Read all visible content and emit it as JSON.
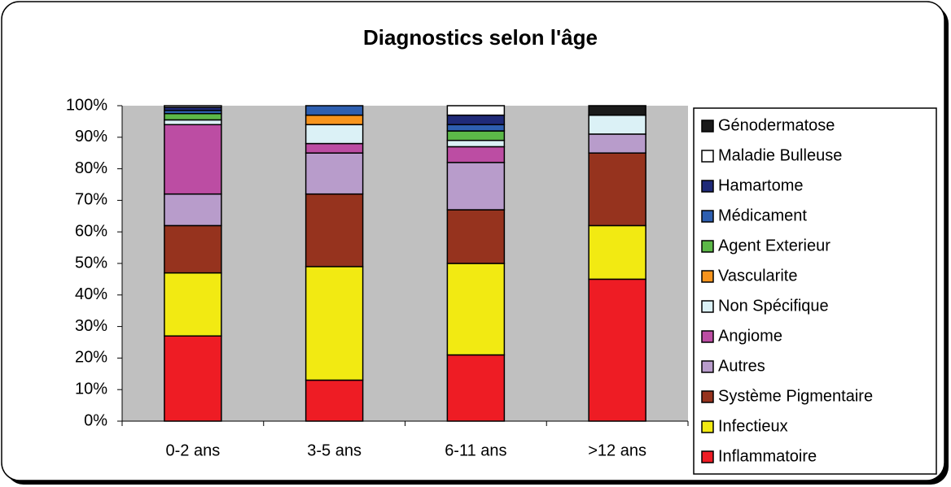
{
  "chart_data": {
    "type": "stacked_bar",
    "title": "Diagnostics selon l'âge",
    "categories": [
      "0-2 ans",
      "3-5 ans",
      "6-11 ans",
      ">12 ans"
    ],
    "series": [
      {
        "name": "Inflammatoire",
        "color": "#ee1c24",
        "values": [
          27,
          13,
          21,
          45
        ]
      },
      {
        "name": "Infectieux",
        "color": "#f2ea12",
        "values": [
          20,
          36,
          29,
          17
        ]
      },
      {
        "name": "Système Pigmentaire",
        "color": "#96331e",
        "values": [
          15,
          23,
          17,
          23
        ]
      },
      {
        "name": "Autres",
        "color": "#b89ccb",
        "values": [
          10,
          13,
          15,
          6
        ]
      },
      {
        "name": "Angiome",
        "color": "#bc4da3",
        "values": [
          22,
          3,
          5,
          0
        ]
      },
      {
        "name": "Non Spécifique",
        "color": "#dbf1f6",
        "values": [
          1.5,
          6,
          2,
          6
        ]
      },
      {
        "name": "Vascularite",
        "color": "#f7941d",
        "values": [
          0,
          3,
          0,
          0
        ]
      },
      {
        "name": "Agent Exterieur",
        "color": "#5cb848",
        "values": [
          2,
          0,
          3,
          0
        ]
      },
      {
        "name": "Médicament",
        "color": "#2e5fb0",
        "values": [
          1,
          3,
          2,
          0
        ]
      },
      {
        "name": "Hamartome",
        "color": "#1f2a78",
        "values": [
          1,
          0,
          3,
          0
        ]
      },
      {
        "name": "Maladie Bulleuse",
        "color": "#ffffff",
        "values": [
          0.5,
          0,
          3,
          0
        ]
      },
      {
        "name": "Génodermatose",
        "color": "#1a1a1a",
        "values": [
          0,
          0,
          0,
          3
        ]
      }
    ],
    "ylim": [
      0,
      100
    ],
    "yticks": [
      {
        "value": 0,
        "label": "0%"
      },
      {
        "value": 10,
        "label": "10%"
      },
      {
        "value": 20,
        "label": "20%"
      },
      {
        "value": 30,
        "label": "30%"
      },
      {
        "value": 40,
        "label": "40%"
      },
      {
        "value": 50,
        "label": "50%"
      },
      {
        "value": 60,
        "label": "60%"
      },
      {
        "value": 70,
        "label": "70%"
      },
      {
        "value": 80,
        "label": "80%"
      },
      {
        "value": 90,
        "label": "90%"
      },
      {
        "value": 100,
        "label": "100%"
      }
    ],
    "legend": "right"
  }
}
